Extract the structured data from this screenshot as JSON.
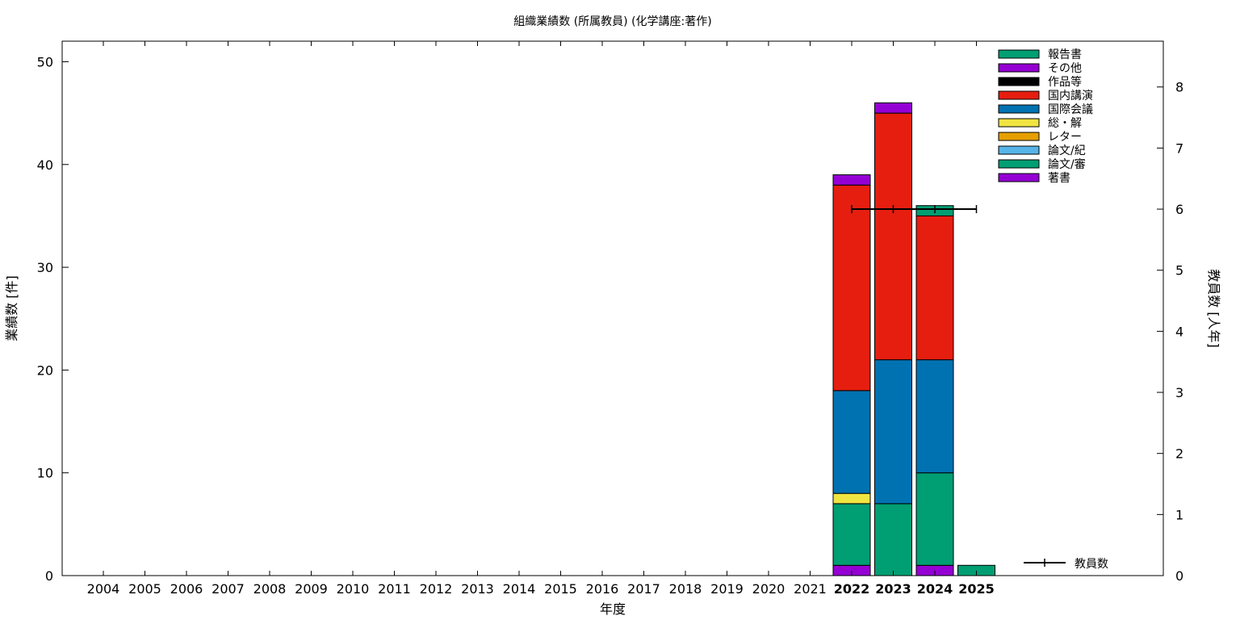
{
  "chart_data": {
    "type": "bar",
    "title": "組織業績数 (所属教員) (化学講座:著作)",
    "xlabel": "年度",
    "ylabel": "業績数 [件]",
    "y2label": "教員数 [人年]",
    "ylim": [
      0,
      52
    ],
    "y2lim": [
      0,
      8.75
    ],
    "yticks": [
      0,
      10,
      20,
      30,
      40,
      50
    ],
    "y2ticks": [
      0,
      1,
      2,
      3,
      4,
      5,
      6,
      7,
      8
    ],
    "categories": [
      "2004",
      "2005",
      "2006",
      "2007",
      "2008",
      "2009",
      "2010",
      "2011",
      "2012",
      "2013",
      "2014",
      "2015",
      "2016",
      "2017",
      "2018",
      "2019",
      "2020",
      "2021",
      "2022",
      "2023",
      "2024",
      "2025"
    ],
    "bold_categories": [
      "2022",
      "2023",
      "2024",
      "2025"
    ],
    "stacked": true,
    "legend_position": "top-right",
    "series": [
      {
        "name": "著書",
        "color": "#9400d3",
        "values": [
          0,
          0,
          0,
          0,
          0,
          0,
          0,
          0,
          0,
          0,
          0,
          0,
          0,
          0,
          0,
          0,
          0,
          0,
          1,
          0,
          1,
          0
        ]
      },
      {
        "name": "論文/審",
        "color": "#009e73",
        "values": [
          0,
          0,
          0,
          0,
          0,
          0,
          0,
          0,
          0,
          0,
          0,
          0,
          0,
          0,
          0,
          0,
          0,
          0,
          6,
          7,
          9,
          1
        ]
      },
      {
        "name": "論文/紀",
        "color": "#56b4e9",
        "values": [
          0,
          0,
          0,
          0,
          0,
          0,
          0,
          0,
          0,
          0,
          0,
          0,
          0,
          0,
          0,
          0,
          0,
          0,
          0,
          0,
          0,
          0
        ]
      },
      {
        "name": "レター",
        "color": "#e69f00",
        "values": [
          0,
          0,
          0,
          0,
          0,
          0,
          0,
          0,
          0,
          0,
          0,
          0,
          0,
          0,
          0,
          0,
          0,
          0,
          0,
          0,
          0,
          0
        ]
      },
      {
        "name": "総・解",
        "color": "#f0e442",
        "values": [
          0,
          0,
          0,
          0,
          0,
          0,
          0,
          0,
          0,
          0,
          0,
          0,
          0,
          0,
          0,
          0,
          0,
          0,
          1,
          0,
          0,
          0
        ]
      },
      {
        "name": "国際会議",
        "color": "#0072b2",
        "values": [
          0,
          0,
          0,
          0,
          0,
          0,
          0,
          0,
          0,
          0,
          0,
          0,
          0,
          0,
          0,
          0,
          0,
          0,
          10,
          14,
          11,
          0
        ]
      },
      {
        "name": "国内講演",
        "color": "#e51e10",
        "values": [
          0,
          0,
          0,
          0,
          0,
          0,
          0,
          0,
          0,
          0,
          0,
          0,
          0,
          0,
          0,
          0,
          0,
          0,
          20,
          24,
          14,
          0
        ]
      },
      {
        "name": "作品等",
        "color": "#000000",
        "values": [
          0,
          0,
          0,
          0,
          0,
          0,
          0,
          0,
          0,
          0,
          0,
          0,
          0,
          0,
          0,
          0,
          0,
          0,
          0,
          0,
          0,
          0
        ]
      },
      {
        "name": "その他",
        "color": "#9400d3",
        "values": [
          0,
          0,
          0,
          0,
          0,
          0,
          0,
          0,
          0,
          0,
          0,
          0,
          0,
          0,
          0,
          0,
          0,
          0,
          1,
          1,
          0,
          0
        ]
      },
      {
        "name": "報告書",
        "color": "#009e73",
        "values": [
          0,
          0,
          0,
          0,
          0,
          0,
          0,
          0,
          0,
          0,
          0,
          0,
          0,
          0,
          0,
          0,
          0,
          0,
          0,
          0,
          1,
          0
        ]
      }
    ],
    "line_series": {
      "name": "教員数",
      "axis": "y2",
      "color": "#000000",
      "x": [
        "2022",
        "2023",
        "2024",
        "2025"
      ],
      "values": [
        6,
        6,
        6,
        6
      ]
    }
  }
}
